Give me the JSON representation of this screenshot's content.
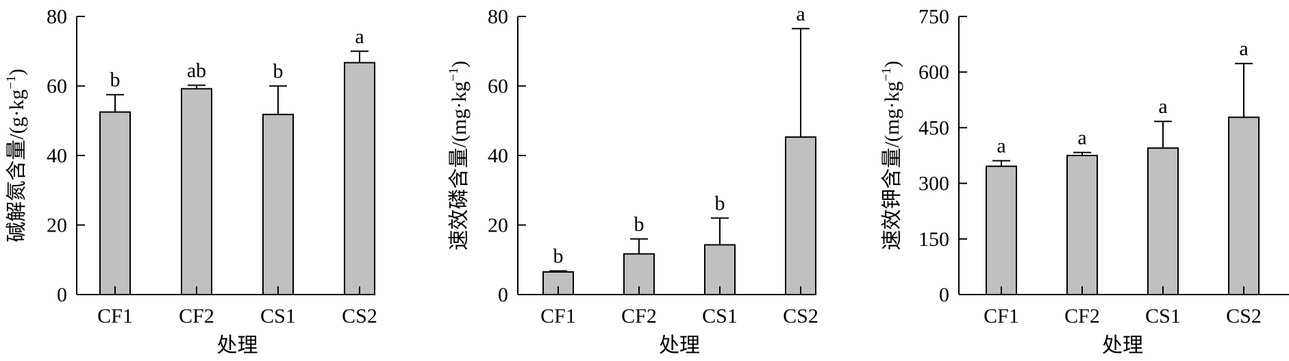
{
  "chart_data": [
    {
      "type": "bar",
      "categories": [
        "CF1",
        "CF2",
        "CS1",
        "CS2"
      ],
      "values": [
        52.5,
        59.2,
        51.8,
        66.7
      ],
      "errors": [
        5.0,
        1.0,
        8.2,
        3.3
      ],
      "labels": [
        "b",
        "ab",
        "b",
        "a"
      ],
      "xlabel": "处理",
      "ylabel": "碱解氮含量/(g·kg",
      "ylabel_sup": "−1",
      "ylabel_tail": ")",
      "ylim": [
        0,
        80
      ],
      "yticks": [
        "0",
        "20",
        "40",
        "60",
        "80"
      ],
      "bar_color": "#c0c0c0",
      "grid": false
    },
    {
      "type": "bar",
      "categories": [
        "CF1",
        "CF2",
        "CS1",
        "CS2"
      ],
      "values": [
        6.5,
        11.7,
        14.3,
        45.3
      ],
      "errors": [
        0.3,
        4.3,
        7.7,
        31.2
      ],
      "labels": [
        "b",
        "b",
        "b",
        "a"
      ],
      "xlabel": "处理",
      "ylabel": "速效磷含量/(mg·kg",
      "ylabel_sup": "−1",
      "ylabel_tail": ")",
      "ylim": [
        0,
        80
      ],
      "yticks": [
        "0",
        "20",
        "40",
        "60",
        "80"
      ],
      "bar_color": "#c0c0c0",
      "grid": false
    },
    {
      "type": "bar",
      "categories": [
        "CF1",
        "CF2",
        "CS1",
        "CS2"
      ],
      "values": [
        346,
        375,
        395,
        478
      ],
      "errors": [
        15,
        8,
        72,
        145
      ],
      "labels": [
        "a",
        "a",
        "a",
        "a"
      ],
      "xlabel": "处理",
      "ylabel": "速效钾含量/(mg·kg",
      "ylabel_sup": "−1",
      "ylabel_tail": ")",
      "ylim": [
        0,
        750
      ],
      "yticks": [
        "0",
        "150",
        "300",
        "450",
        "600",
        "750"
      ],
      "bar_color": "#c0c0c0",
      "grid": false
    }
  ]
}
